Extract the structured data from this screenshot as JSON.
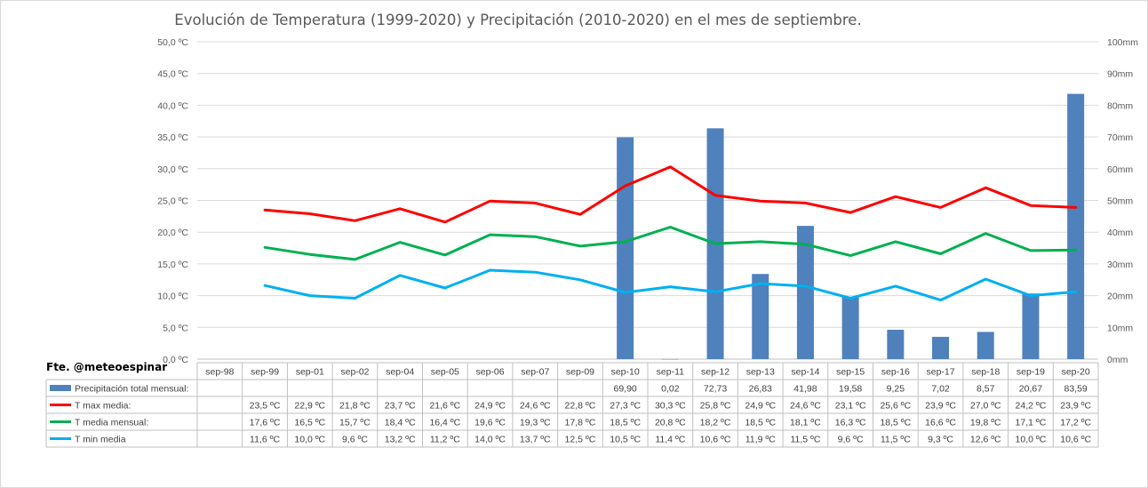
{
  "chart_data": {
    "type": "bar+line",
    "title": "Evolución de Temperatura (1999-2020) y Precipitación (2010-2020) en el mes de septiembre.",
    "source": "Fte. @meteoespinar",
    "categories": [
      "sep-98",
      "sep-99",
      "sep-01",
      "sep-02",
      "sep-04",
      "sep-05",
      "sep-06",
      "sep-07",
      "sep-09",
      "sep-10",
      "sep-11",
      "sep-12",
      "sep-13",
      "sep-14",
      "sep-15",
      "sep-16",
      "sep-17",
      "sep-18",
      "sep-19",
      "sep-20"
    ],
    "y_left": {
      "ylim": [
        0,
        50
      ],
      "ticks": [
        "0,0 ºC",
        "5,0 ºC",
        "10,0 ºC",
        "15,0 ºC",
        "20,0 ºC",
        "25,0 ºC",
        "30,0 ºC",
        "35,0 ºC",
        "40,0 ºC",
        "45,0 ºC",
        "50,0 ºC"
      ]
    },
    "y_right": {
      "ylim": [
        0,
        100
      ],
      "ticks": [
        "0mm",
        "10mm",
        "20mm",
        "30mm",
        "40mm",
        "50mm",
        "60mm",
        "70mm",
        "80mm",
        "90mm",
        "100mm"
      ]
    },
    "series": [
      {
        "name": "Precipitación total mensual:",
        "kind": "bar",
        "axis": "right",
        "color": "#4f81bd",
        "values": [
          null,
          null,
          null,
          null,
          null,
          null,
          null,
          null,
          null,
          69.9,
          0.02,
          72.73,
          26.83,
          41.98,
          19.58,
          9.25,
          7.02,
          8.57,
          20.67,
          83.59
        ],
        "labels": [
          "",
          "",
          "",
          "",
          "",
          "",
          "",
          "",
          "",
          "69,90",
          "0,02",
          "72,73",
          "26,83",
          "41,98",
          "19,58",
          "9,25",
          "7,02",
          "8,57",
          "20,67",
          "83,59"
        ]
      },
      {
        "name": "T max media:",
        "kind": "line",
        "axis": "left",
        "color": "#ff0000",
        "values": [
          null,
          23.5,
          22.9,
          21.8,
          23.7,
          21.6,
          24.9,
          24.6,
          22.8,
          27.3,
          30.3,
          25.8,
          24.9,
          24.6,
          23.1,
          25.6,
          23.9,
          27.0,
          24.2,
          23.9
        ],
        "labels": [
          "",
          "23,5 ºC",
          "22,9 ºC",
          "21,8 ºC",
          "23,7 ºC",
          "21,6 ºC",
          "24,9 ºC",
          "24,6 ºC",
          "22,8 ºC",
          "27,3 ºC",
          "30,3 ºC",
          "25,8 ºC",
          "24,9 ºC",
          "24,6 ºC",
          "23,1 ºC",
          "25,6 ºC",
          "23,9 ºC",
          "27,0 ºC",
          "24,2 ºC",
          "23,9 ºC"
        ]
      },
      {
        "name": "T media mensual:",
        "kind": "line",
        "axis": "left",
        "color": "#00b050",
        "values": [
          null,
          17.6,
          16.5,
          15.7,
          18.4,
          16.4,
          19.6,
          19.3,
          17.8,
          18.5,
          20.8,
          18.2,
          18.5,
          18.1,
          16.3,
          18.5,
          16.6,
          19.8,
          17.1,
          17.2
        ],
        "labels": [
          "",
          "17,6 ºC",
          "16,5 ºC",
          "15,7 ºC",
          "18,4 ºC",
          "16,4 ºC",
          "19,6 ºC",
          "19,3 ºC",
          "17,8 ºC",
          "18,5 ºC",
          "20,8 ºC",
          "18,2 ºC",
          "18,5 ºC",
          "18,1 ºC",
          "16,3 ºC",
          "18,5 ºC",
          "16,6 ºC",
          "19,8 ºC",
          "17,1 ºC",
          "17,2 ºC"
        ]
      },
      {
        "name": "T min media",
        "kind": "line",
        "axis": "left",
        "color": "#00b0f0",
        "values": [
          null,
          11.6,
          10.0,
          9.6,
          13.2,
          11.2,
          14.0,
          13.7,
          12.5,
          10.5,
          11.4,
          10.6,
          11.9,
          11.5,
          9.6,
          11.5,
          9.3,
          12.6,
          10.0,
          10.6
        ],
        "labels": [
          "",
          "11,6 ºC",
          "10,0 ºC",
          "9,6 ºC",
          "13,2 ºC",
          "11,2 ºC",
          "14,0 ºC",
          "13,7 ºC",
          "12,5 ºC",
          "10,5 ºC",
          "11,4 ºC",
          "10,6 ºC",
          "11,9 ºC",
          "11,5 ºC",
          "9,6 ºC",
          "11,5 ºC",
          "9,3 ºC",
          "12,6 ºC",
          "10,0 ºC",
          "10,6 ºC"
        ]
      }
    ]
  }
}
